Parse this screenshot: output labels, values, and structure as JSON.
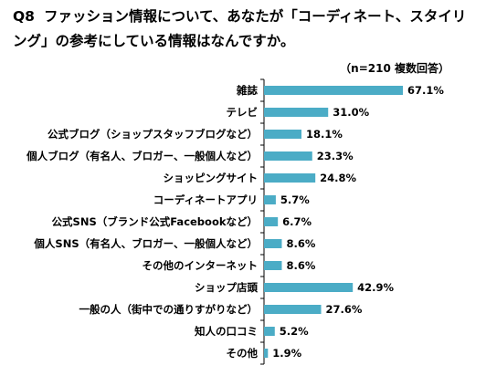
{
  "question": {
    "number": "Q8",
    "text": "ファッション情報について、あなたが「コーディネート、スタイリング」の参考にしている情報はなんですか。"
  },
  "note": "（n=210 複数回答）",
  "colors": {
    "bar": "#4BACC6",
    "axis": "#000000"
  },
  "chart_data": {
    "type": "bar",
    "orientation": "horizontal",
    "categories": [
      "雑誌",
      "テレビ",
      "公式ブログ（ショップスタッフブログなど）",
      "個人ブログ（有名人、ブロガー、一般個人など）",
      "ショッピングサイト",
      "コーディネートアプリ",
      "公式SNS（ブランド公式Facebookなど）",
      "個人SNS（有名人、ブロガー、一般個人など）",
      "その他のインターネット",
      "ショップ店頭",
      "一般の人（街中での通りすがりなど）",
      "知人の口コミ",
      "その他"
    ],
    "values": [
      67.1,
      31.0,
      18.1,
      23.3,
      24.8,
      5.7,
      6.7,
      8.6,
      8.6,
      42.9,
      27.6,
      5.2,
      1.9
    ],
    "value_labels": [
      "67.1%",
      "31.0%",
      "18.1%",
      "23.3%",
      "24.8%",
      "5.7%",
      "6.7%",
      "8.6%",
      "8.6%",
      "42.9%",
      "27.6%",
      "5.2%",
      "1.9%"
    ],
    "xlim": [
      0,
      70
    ],
    "grid": false,
    "legend": "none"
  }
}
